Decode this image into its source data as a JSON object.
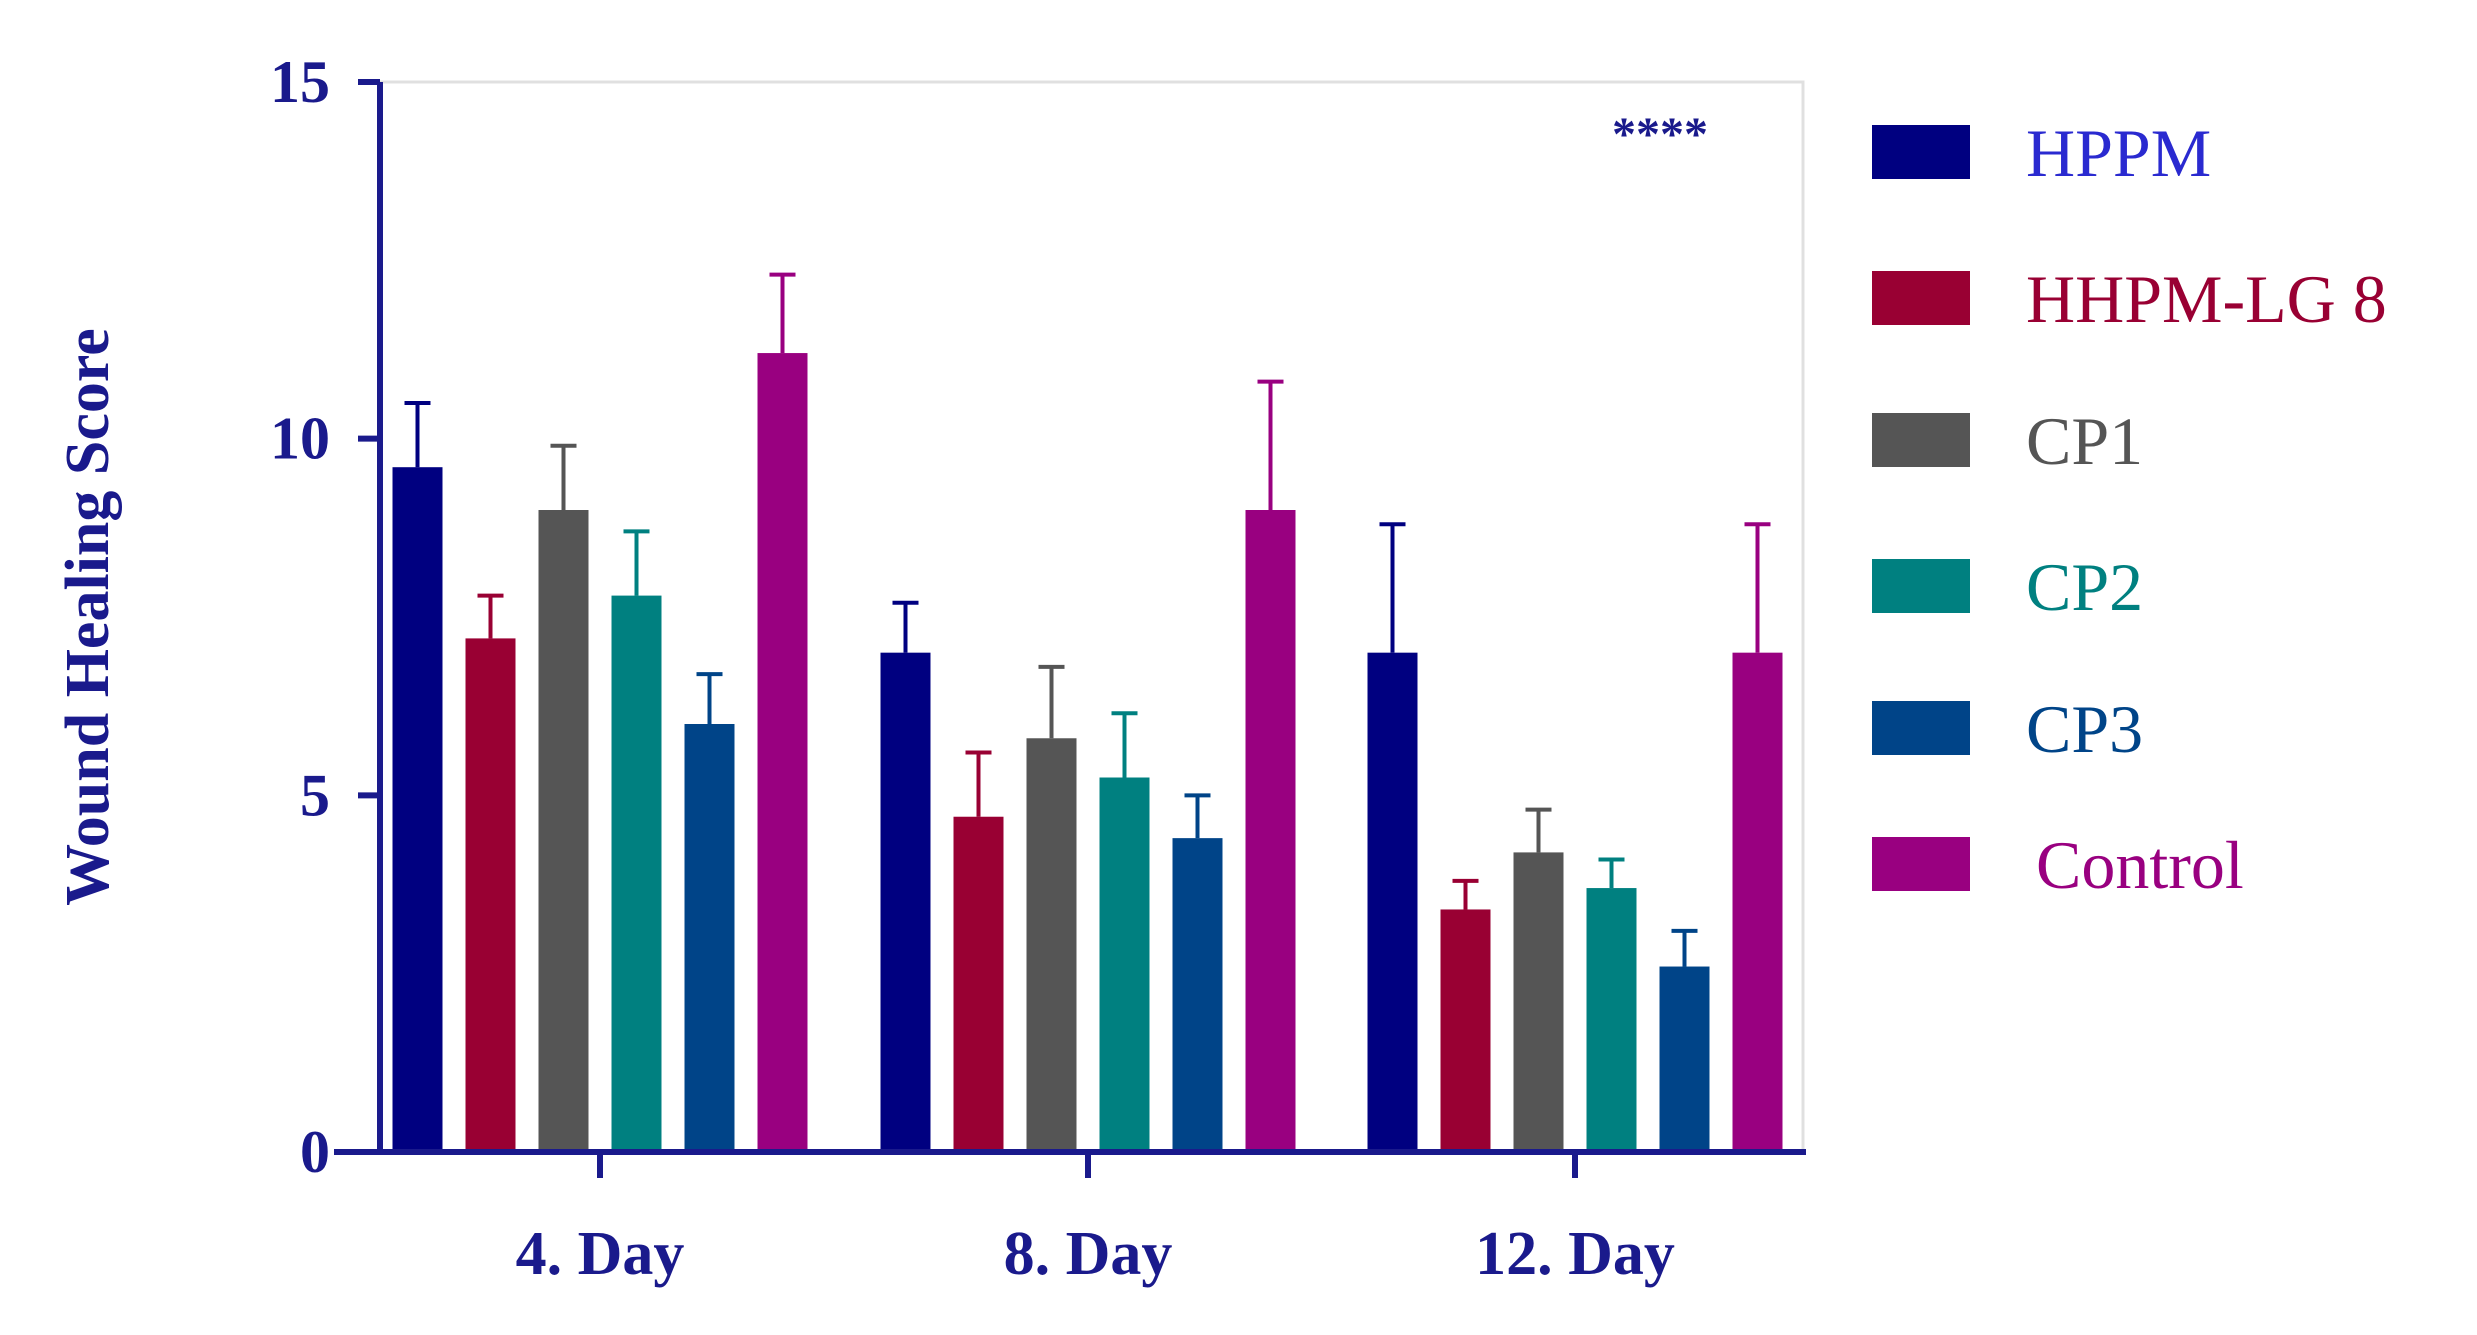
{
  "chart_data": {
    "type": "bar",
    "title": "",
    "xlabel": "",
    "ylabel": "Wound Healing Score",
    "ylim": [
      0,
      15
    ],
    "yticks": [
      0,
      5,
      10,
      15
    ],
    "grid": false,
    "legend_position": "right",
    "significance": "****",
    "categories": [
      "4. Day",
      "8. Day",
      "12. Day"
    ],
    "series": [
      {
        "name": "HPPM",
        "color": "#000080",
        "values": [
          9.6,
          7.0,
          7.0
        ],
        "errors": [
          0.9,
          0.7,
          1.8
        ]
      },
      {
        "name": "HHPM-LG 8",
        "color": "#990033",
        "values": [
          7.2,
          4.7,
          3.4
        ],
        "errors": [
          0.6,
          0.9,
          0.4
        ]
      },
      {
        "name": "CP1",
        "color": "#555555",
        "values": [
          9.0,
          5.8,
          4.2
        ],
        "errors": [
          0.9,
          1.0,
          0.6
        ]
      },
      {
        "name": "CP2",
        "color": "#008080",
        "values": [
          7.8,
          5.25,
          3.7
        ],
        "errors": [
          0.9,
          0.9,
          0.4
        ]
      },
      {
        "name": "CP3",
        "color": "#004488",
        "values": [
          6.0,
          4.4,
          2.6
        ],
        "errors": [
          0.7,
          0.6,
          0.5
        ]
      },
      {
        "name": "Control",
        "color": "#990080",
        "values": [
          11.2,
          9.0,
          7.0
        ],
        "errors": [
          1.1,
          1.8,
          1.8
        ]
      }
    ],
    "axis_color": "#1a1a8c",
    "legend_text_colors": [
      "#2a2ad0",
      "#990033",
      "#555555",
      "#008080",
      "#004488",
      "#990080"
    ]
  }
}
